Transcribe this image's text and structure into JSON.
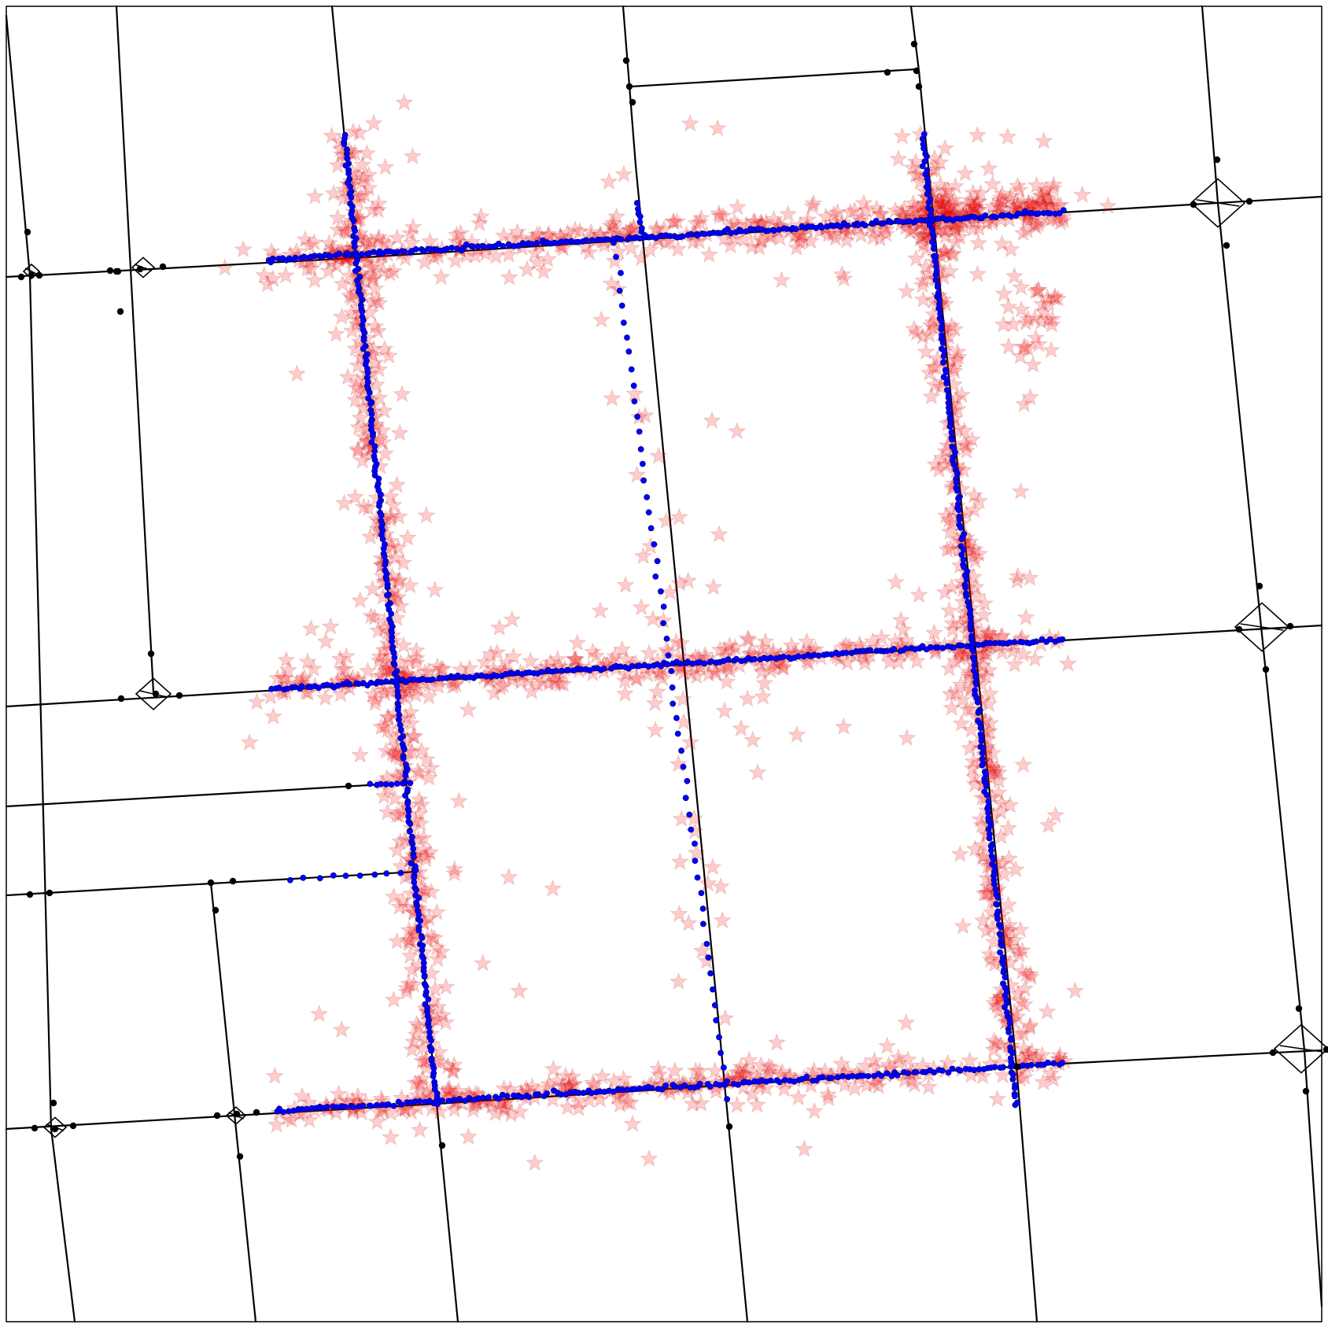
{
  "chart_data": {
    "type": "scatter",
    "title": "",
    "xlabel": "",
    "ylabel": "",
    "axes_ticks": "none",
    "grid": false,
    "legend": "none",
    "layers": [
      {
        "role": "road-network",
        "style": "black lines with black node dots"
      },
      {
        "role": "observations",
        "style": "translucent red star markers"
      },
      {
        "role": "matched-path",
        "style": "blue dots along roads"
      }
    ],
    "colors": {
      "road": "#000000",
      "node": "#000000",
      "observation": "#ff0000",
      "matched": "#0000ff"
    }
  }
}
